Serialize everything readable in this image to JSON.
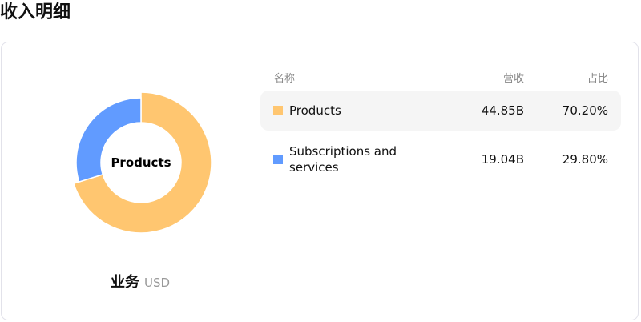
{
  "page_title": "收入明细",
  "chart_data": {
    "type": "pie",
    "variant": "donut",
    "center_label": "Products",
    "caption": "业务",
    "unit": "USD",
    "start_angle": "top, clockwise",
    "highlighted": "Products",
    "slices": [
      {
        "name": "Products",
        "value": 44.85,
        "display_value": "44.85B",
        "percent": "70.20%",
        "color": "#ffc670"
      },
      {
        "name": "Subscriptions and services",
        "value": 19.04,
        "display_value": "19.04B",
        "percent": "29.80%",
        "color": "#619bff"
      }
    ]
  },
  "table": {
    "headers": {
      "name": "名称",
      "revenue": "营收",
      "share": "占比"
    }
  }
}
